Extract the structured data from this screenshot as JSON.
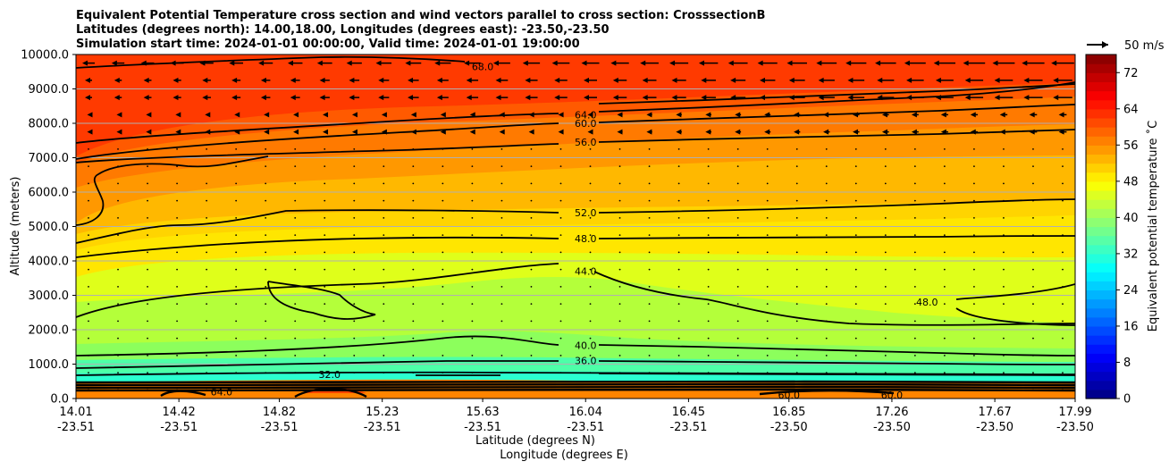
{
  "chart_data": {
    "type": "contour",
    "title_lines": [
      "Equivalent Potential Temperature cross section and wind vectors parallel to cross section: CrosssectionB",
      "Latitudes (degrees north): 14.00,18.00, Longitudes (degrees east): -23.50,-23.50",
      "Simulation start time: 2024-01-01 00:00:00, Valid time: 2024-01-01 19:00:00"
    ],
    "ylabel": "Altitude (meters)",
    "xlabel_lat": "Latitude (degrees N)",
    "xlabel_lon": "Longitude (degrees E)",
    "ylim": [
      0,
      10000
    ],
    "yticks": [
      "0.0",
      "1000.0",
      "2000.0",
      "3000.0",
      "4000.0",
      "5000.0",
      "6000.0",
      "7000.0",
      "8000.0",
      "9000.0",
      "10000.0"
    ],
    "xlim_lat": [
      14.01,
      17.99
    ],
    "xticks": [
      {
        "lat": "14.01",
        "lon": "-23.51"
      },
      {
        "lat": "14.42",
        "lon": "-23.51"
      },
      {
        "lat": "14.82",
        "lon": "-23.51"
      },
      {
        "lat": "15.23",
        "lon": "-23.51"
      },
      {
        "lat": "15.63",
        "lon": "-23.51"
      },
      {
        "lat": "16.04",
        "lon": "-23.51"
      },
      {
        "lat": "16.45",
        "lon": "-23.51"
      },
      {
        "lat": "16.85",
        "lon": "-23.50"
      },
      {
        "lat": "17.26",
        "lon": "-23.50"
      },
      {
        "lat": "17.67",
        "lon": "-23.50"
      },
      {
        "lat": "17.99",
        "lon": "-23.50"
      }
    ],
    "grid": "horizontal",
    "colorbar": {
      "label": "Equivalent potential temperature ˚C",
      "min": 0,
      "max": 76,
      "step": 2,
      "ticks": [
        "0",
        "8",
        "16",
        "24",
        "32",
        "40",
        "48",
        "56",
        "64",
        "72"
      ]
    },
    "contour_labels": [
      {
        "value": "68.0",
        "lat": 15.63,
        "alt": 9650
      },
      {
        "value": "64.0",
        "lat": 16.04,
        "alt": 8250
      },
      {
        "value": "60.0",
        "lat": 16.04,
        "alt": 8000
      },
      {
        "value": "56.0",
        "lat": 16.04,
        "alt": 7450
      },
      {
        "value": "52.0",
        "lat": 16.04,
        "alt": 5400
      },
      {
        "value": "48.0",
        "lat": 16.04,
        "alt": 4650
      },
      {
        "value": "44.0",
        "lat": 16.04,
        "alt": 3700
      },
      {
        "value": "48.0",
        "lat": 17.4,
        "alt": 2800
      },
      {
        "value": "40.0",
        "lat": 16.04,
        "alt": 1550
      },
      {
        "value": "36.0",
        "lat": 16.04,
        "alt": 1100
      },
      {
        "value": "32.0",
        "lat": 15.02,
        "alt": 700
      },
      {
        "value": "64.0",
        "lat": 14.59,
        "alt": 200
      },
      {
        "value": "60.0",
        "lat": 16.85,
        "alt": 100
      },
      {
        "value": "60.0",
        "lat": 17.26,
        "alt": 100
      }
    ],
    "wind_key": {
      "label": "50 m/s",
      "speed": 50
    }
  }
}
